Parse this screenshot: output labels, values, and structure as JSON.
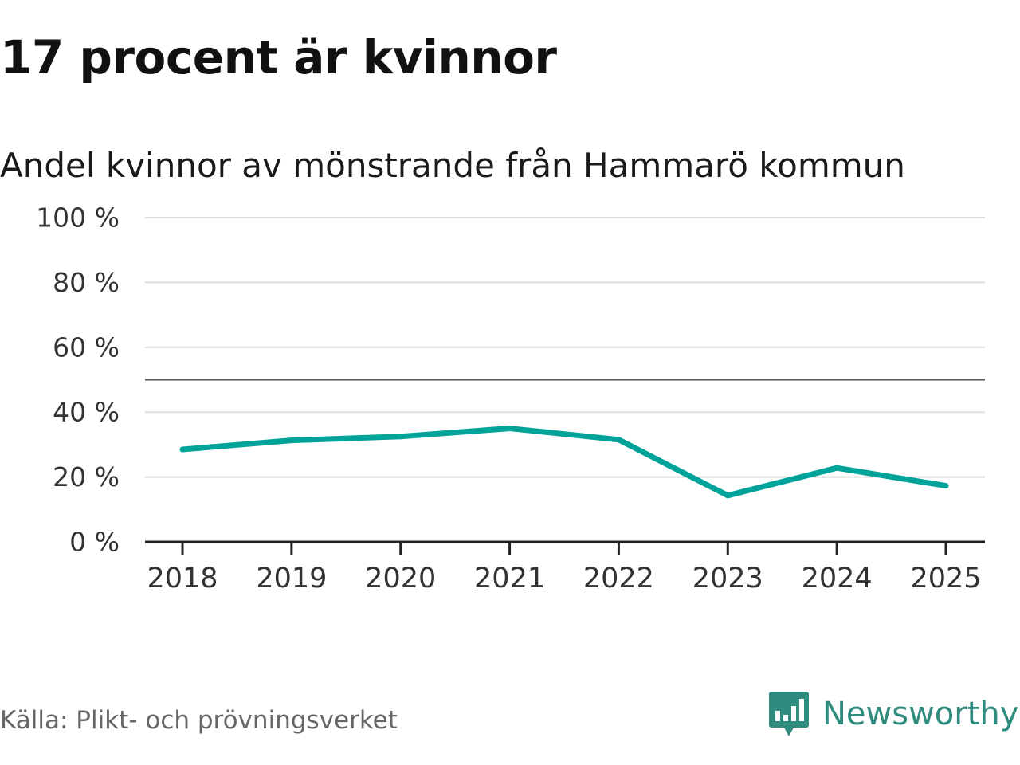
{
  "title": "17 procent är kvinnor",
  "subtitle": "Andel kvinnor av mönstrande från Hammarö kommun",
  "source": "Källa: Plikt- och prövningsverket",
  "brand": {
    "name": "Newsworthy",
    "color": "#2e8b7e",
    "icon": "newsworthy-logo-icon"
  },
  "chart_data": {
    "type": "line",
    "x": [
      "2018",
      "2019",
      "2020",
      "2021",
      "2022",
      "2023",
      "2024",
      "2025"
    ],
    "series": [
      {
        "values": [
          28.5,
          31.3,
          32.5,
          35,
          31.5,
          14.3,
          22.8,
          17.3
        ],
        "color": "#00a39a"
      }
    ],
    "ylim": [
      0,
      100
    ],
    "yticks": [
      0,
      20,
      40,
      60,
      80,
      100
    ],
    "ytick_labels": [
      "0 %",
      "20 %",
      "40 %",
      "60 %",
      "80 %",
      "100 %"
    ],
    "reference_line": 50,
    "grid": true,
    "xlabel": "",
    "ylabel": ""
  }
}
